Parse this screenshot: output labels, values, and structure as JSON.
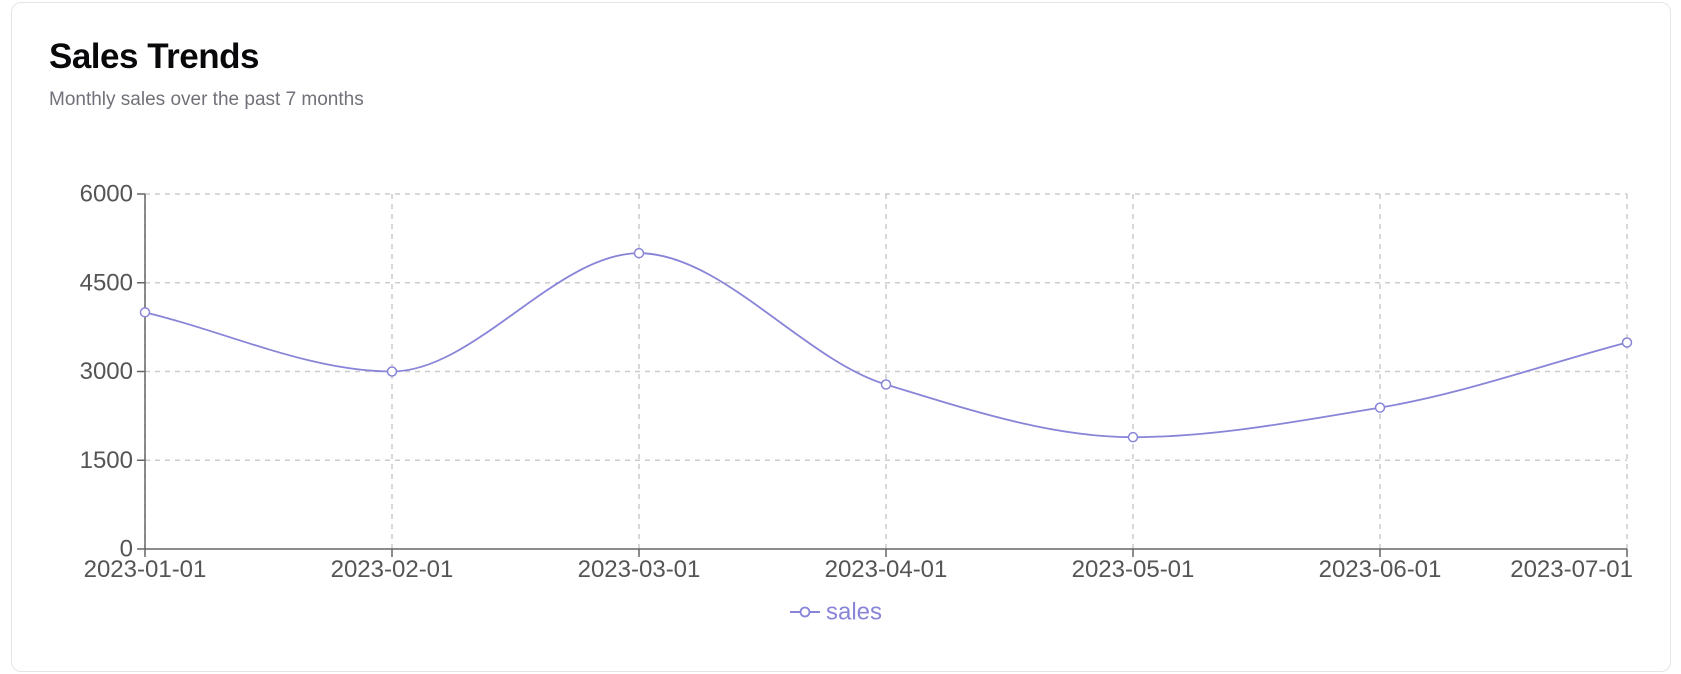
{
  "header": {
    "title": "Sales Trends",
    "subtitle": "Monthly sales over the past 7 months"
  },
  "colors": {
    "series": "#8884d8",
    "grid": "#cccccc",
    "axis": "#666666",
    "tick_text": "#555555",
    "title": "#09090b",
    "subtitle": "#71717a",
    "card_border": "#e4e4e7"
  },
  "chart_data": {
    "type": "line",
    "curve": "monotone",
    "x": [
      "2023-01-01",
      "2023-02-01",
      "2023-03-01",
      "2023-04-01",
      "2023-05-01",
      "2023-06-01",
      "2023-07-01"
    ],
    "series": [
      {
        "name": "sales",
        "values": [
          4000,
          3000,
          5000,
          2780,
          1890,
          2390,
          3490
        ]
      }
    ],
    "ylim": [
      0,
      6000
    ],
    "yticks": [
      0,
      1500,
      3000,
      4500,
      6000
    ],
    "grid": true,
    "grid_style": "dashed",
    "legend": "bottom-center"
  }
}
